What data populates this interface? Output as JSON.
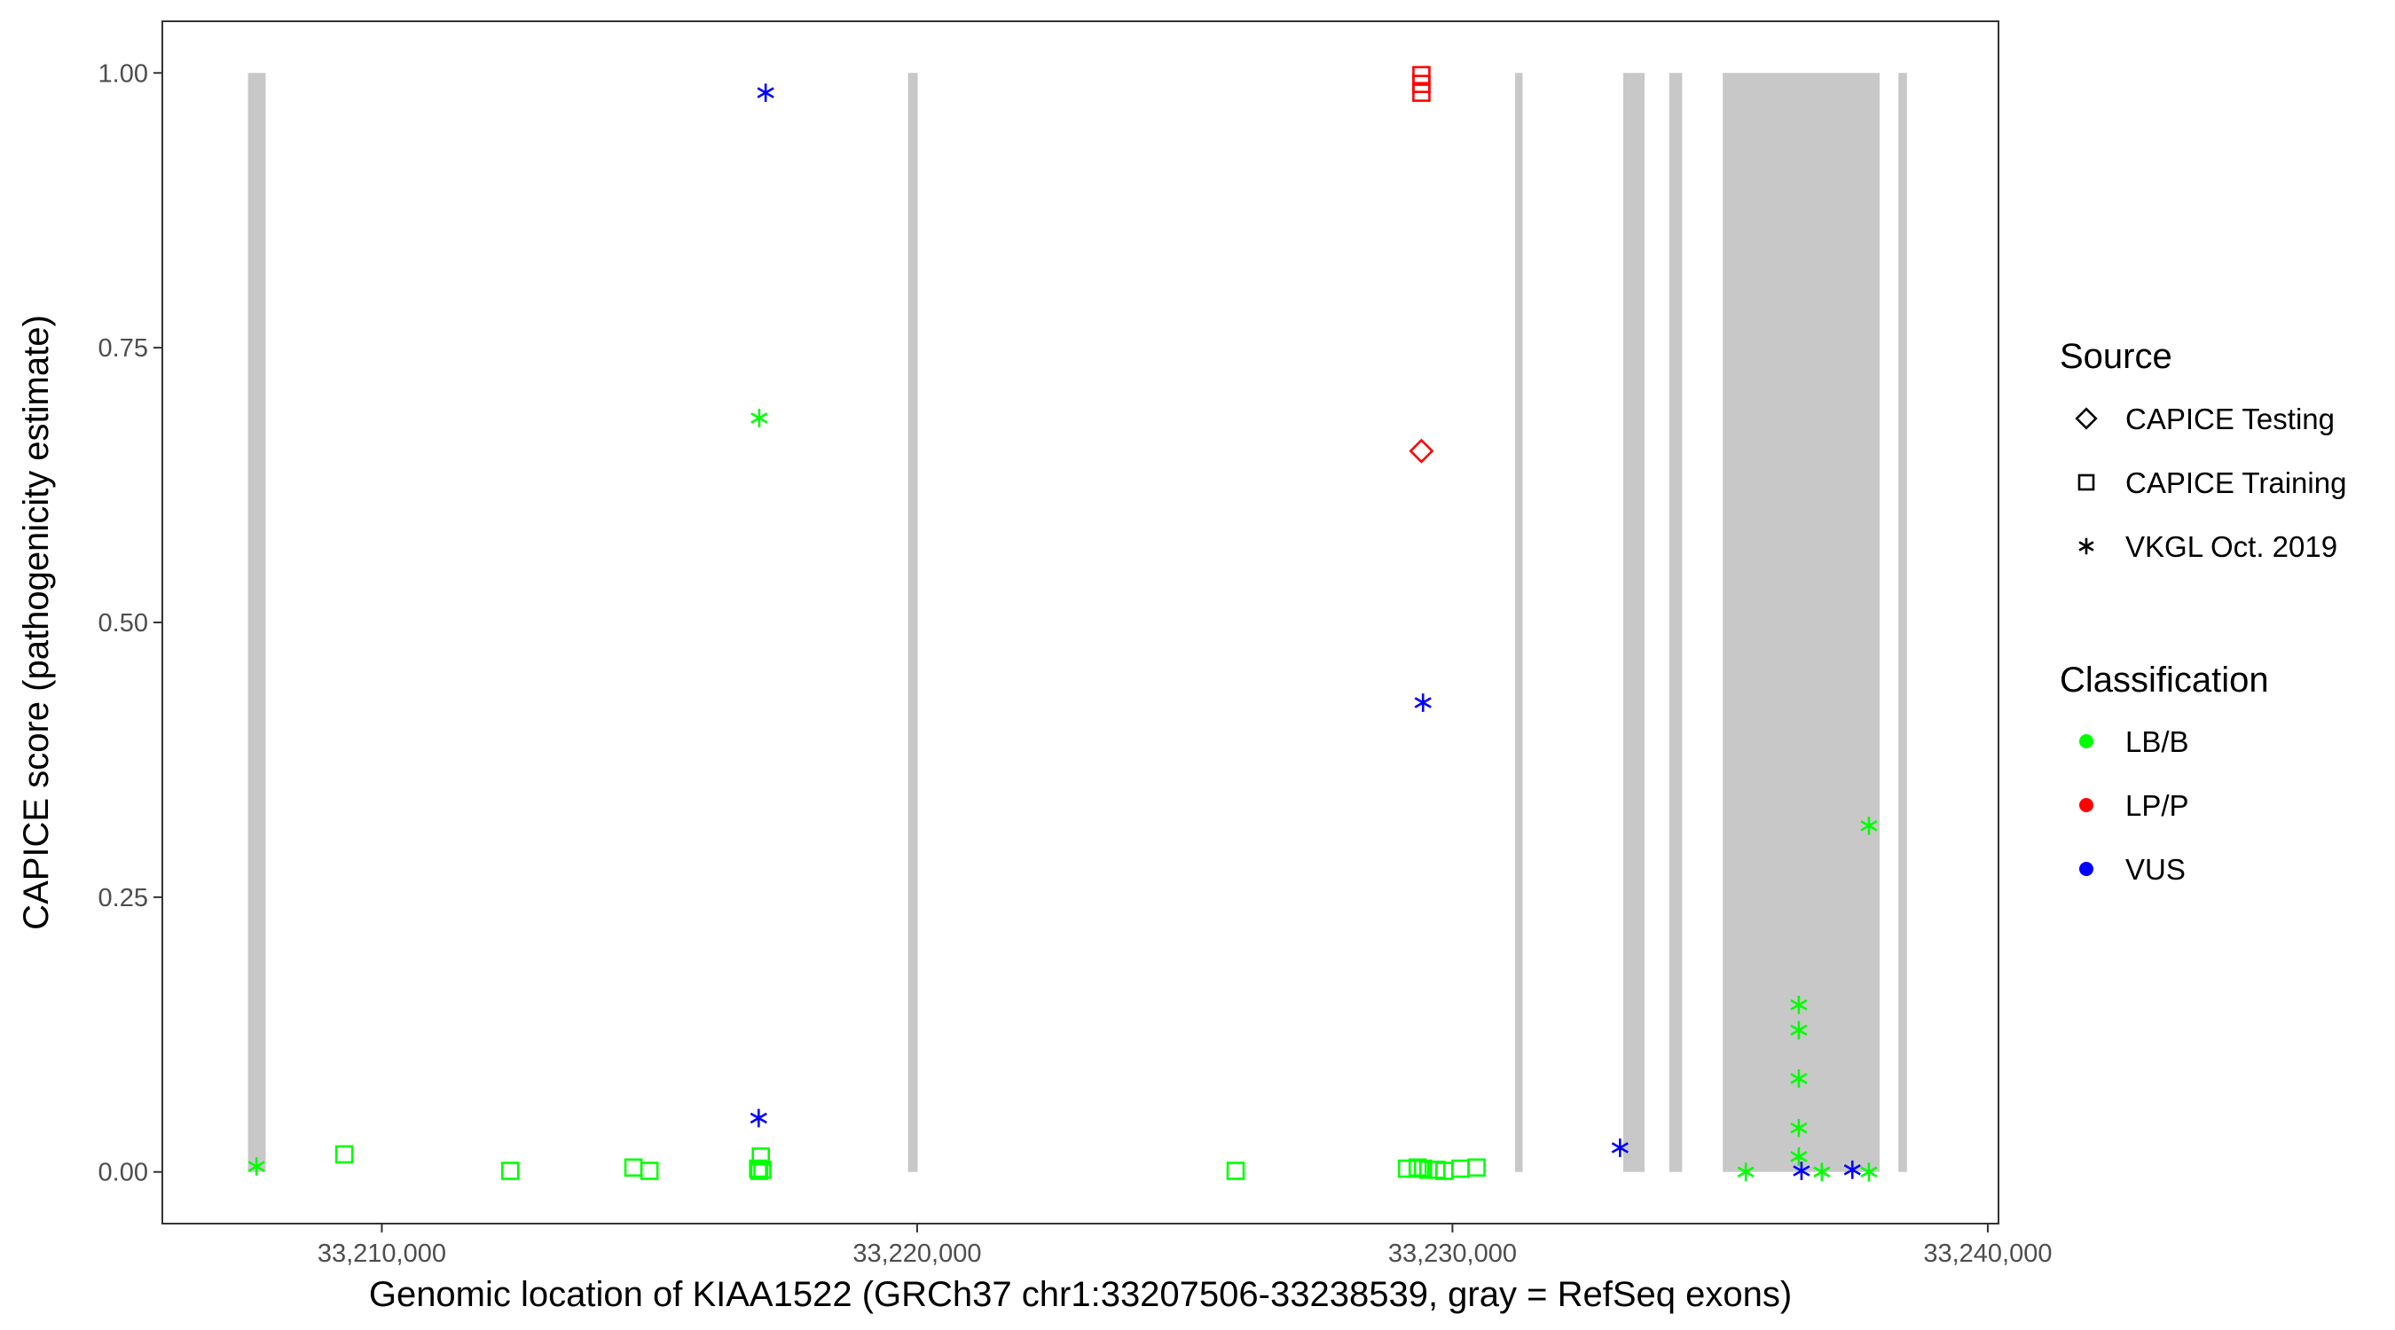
{
  "chart_data": {
    "type": "scatter",
    "xlabel": "Genomic location of KIAA1522 (GRCh37 chr1:33207506-33238539, gray = RefSeq exons)",
    "ylabel": "CAPICE score (pathogenicity estimate)",
    "xlim": [
      33205900,
      33240200
    ],
    "ylim": [
      -0.047,
      1.047
    ],
    "x_ticks": [
      33210000,
      33220000,
      33230000,
      33240000
    ],
    "x_tick_labels": [
      "33,210,000",
      "33,220,000",
      "33,230,000",
      "33,240,000"
    ],
    "y_ticks": [
      0,
      0.25,
      0.5,
      0.75,
      1.0
    ],
    "y_tick_labels": [
      "0.00",
      "0.25",
      "0.50",
      "0.75",
      "1.00"
    ],
    "grid": false,
    "exons": [
      {
        "start": 33207500,
        "end": 33207830
      },
      {
        "start": 33219830,
        "end": 33220010
      },
      {
        "start": 33231170,
        "end": 33231310
      },
      {
        "start": 33233190,
        "end": 33233590
      },
      {
        "start": 33234050,
        "end": 33234290
      },
      {
        "start": 33235050,
        "end": 33237980
      },
      {
        "start": 33238330,
        "end": 33238490
      }
    ],
    "exon_color": "#c8c8c8",
    "legend": {
      "position": "right",
      "source_title": "Source",
      "source_entries": [
        {
          "label": "CAPICE Testing",
          "shape": "diamond"
        },
        {
          "label": "CAPICE Training",
          "shape": "square"
        },
        {
          "label": "VKGL Oct. 2019",
          "shape": "asterisk"
        }
      ],
      "classification_title": "Classification",
      "classification_entries": [
        {
          "label": "LB/B",
          "color": "#00ff00"
        },
        {
          "label": "LP/P",
          "color": "#ff0000"
        },
        {
          "label": "VUS",
          "color": "#0000ff"
        }
      ]
    },
    "series": [
      {
        "source": "CAPICE Training",
        "shape": "square",
        "classification": "LB/B",
        "color": "#00ff00",
        "points": [
          {
            "x": 33209300,
            "y": 0.016
          },
          {
            "x": 33212400,
            "y": 0.001
          },
          {
            "x": 33214700,
            "y": 0.004
          },
          {
            "x": 33215000,
            "y": 0.001
          },
          {
            "x": 33217080,
            "y": 0.014
          },
          {
            "x": 33217030,
            "y": 0.003
          },
          {
            "x": 33217050,
            "y": 0.001
          },
          {
            "x": 33217110,
            "y": 0.002
          },
          {
            "x": 33225950,
            "y": 0.001
          },
          {
            "x": 33229150,
            "y": 0.003
          },
          {
            "x": 33229350,
            "y": 0.004
          },
          {
            "x": 33229450,
            "y": 0.003
          },
          {
            "x": 33229550,
            "y": 0.002
          },
          {
            "x": 33229700,
            "y": 0.002
          },
          {
            "x": 33229850,
            "y": 0.001
          },
          {
            "x": 33230150,
            "y": 0.003
          },
          {
            "x": 33230450,
            "y": 0.004
          }
        ]
      },
      {
        "source": "CAPICE Training",
        "shape": "square",
        "classification": "LP/P",
        "color": "#ff0000",
        "points": [
          {
            "x": 33229420,
            "y": 0.998
          },
          {
            "x": 33229420,
            "y": 0.99
          },
          {
            "x": 33229420,
            "y": 0.982
          }
        ]
      },
      {
        "source": "CAPICE Testing",
        "shape": "diamond",
        "classification": "LP/P",
        "color": "#ff0000",
        "points": [
          {
            "x": 33229420,
            "y": 0.656
          }
        ]
      },
      {
        "source": "VKGL Oct. 2019",
        "shape": "asterisk",
        "classification": "LB/B",
        "color": "#00ff00",
        "points": [
          {
            "x": 33207660,
            "y": 0.005
          },
          {
            "x": 33217050,
            "y": 0.686
          },
          {
            "x": 33235480,
            "y": 0.0
          },
          {
            "x": 33236470,
            "y": 0.152
          },
          {
            "x": 33236470,
            "y": 0.129
          },
          {
            "x": 33236470,
            "y": 0.085
          },
          {
            "x": 33236470,
            "y": 0.04
          },
          {
            "x": 33236470,
            "y": 0.014
          },
          {
            "x": 33236900,
            "y": 0.0
          },
          {
            "x": 33237780,
            "y": 0.315
          },
          {
            "x": 33237780,
            "y": 0.0
          }
        ]
      },
      {
        "source": "VKGL Oct. 2019",
        "shape": "asterisk",
        "classification": "VUS",
        "color": "#0000ff",
        "points": [
          {
            "x": 33217170,
            "y": 0.982
          },
          {
            "x": 33217040,
            "y": 0.049
          },
          {
            "x": 33229450,
            "y": 0.427
          },
          {
            "x": 33233130,
            "y": 0.022
          },
          {
            "x": 33236520,
            "y": 0.001
          },
          {
            "x": 33237470,
            "y": 0.002
          }
        ]
      }
    ]
  }
}
